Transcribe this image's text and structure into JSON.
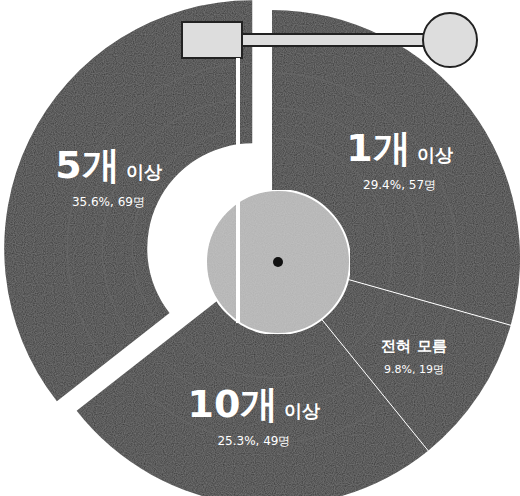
{
  "chart_data": {
    "type": "pie",
    "categories": [
      "1개 이상",
      "전혀 모름",
      "10개 이상",
      "5개 이상"
    ],
    "values": [
      29.4,
      9.8,
      25.3,
      35.6
    ],
    "value_labels": [
      "29.4%, 57명",
      "9.8%, 19명",
      "25.3%, 49명",
      "35.6%, 69명"
    ],
    "colors": [
      "#2b2b2b",
      "#2b2b2b",
      "#2b2b2b",
      "#2b2b2b"
    ],
    "data_labels": true
  }
}
